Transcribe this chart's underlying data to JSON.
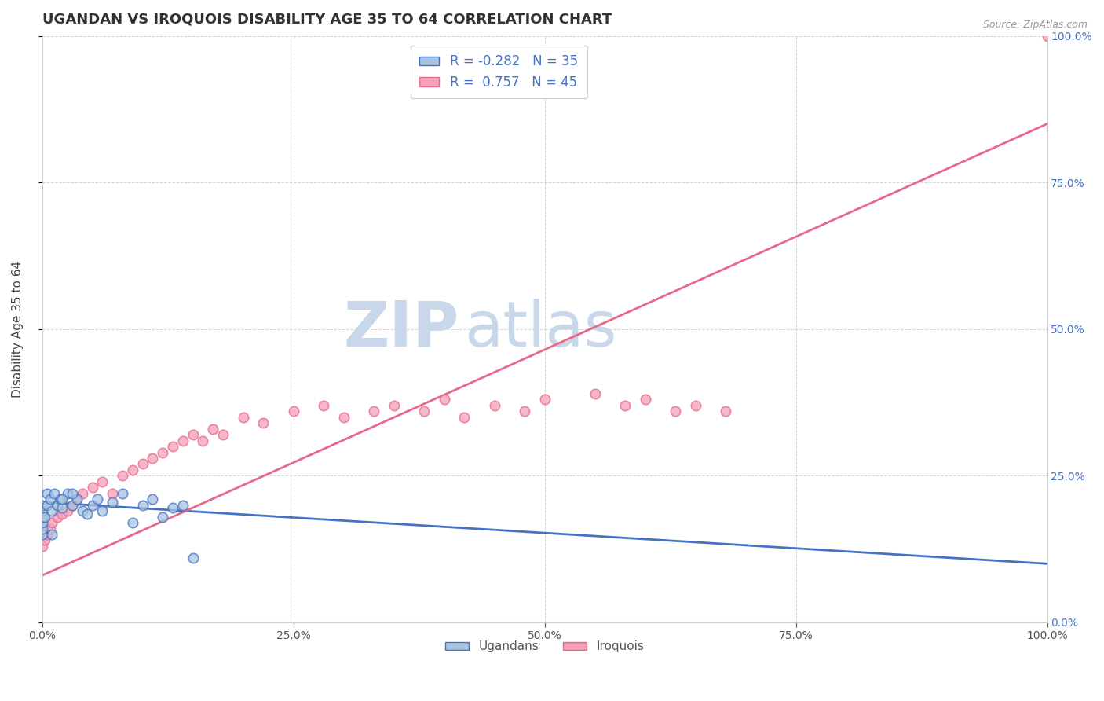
{
  "title": "UGANDAN VS IROQUOIS DISABILITY AGE 35 TO 64 CORRELATION CHART",
  "source_text": "Source: ZipAtlas.com",
  "ylabel": "Disability Age 35 to 64",
  "legend_ugandan": "Ugandans",
  "legend_iroquois": "Iroquois",
  "r_ugandan": -0.282,
  "n_ugandan": 35,
  "r_iroquois": 0.757,
  "n_iroquois": 45,
  "color_ugandan": "#a8c4e0",
  "color_iroquois": "#f4a0b8",
  "color_ugandan_line": "#4472c4",
  "color_iroquois_line": "#e8688a",
  "background_color": "#ffffff",
  "grid_color": "#d0d0d0",
  "watermark": "ZIPatlas",
  "watermark_color": "#c8d8ea",
  "ugandan_x": [
    0.0,
    0.0,
    0.0,
    0.0,
    0.0,
    0.0,
    0.3,
    0.5,
    0.5,
    0.8,
    1.0,
    1.2,
    1.5,
    1.8,
    2.0,
    2.5,
    3.0,
    3.5,
    4.0,
    4.5,
    5.0,
    5.5,
    6.0,
    7.0,
    8.0,
    9.0,
    10.0,
    11.0,
    12.0,
    13.0,
    14.0,
    15.0,
    1.0,
    2.0,
    3.0
  ],
  "ugandan_y": [
    15.0,
    16.0,
    17.0,
    18.0,
    19.0,
    20.0,
    18.0,
    22.0,
    20.0,
    21.0,
    19.0,
    22.0,
    20.0,
    21.0,
    19.5,
    22.0,
    20.0,
    21.0,
    19.0,
    18.5,
    20.0,
    21.0,
    19.0,
    20.5,
    22.0,
    17.0,
    20.0,
    21.0,
    18.0,
    19.5,
    20.0,
    11.0,
    15.0,
    21.0,
    22.0
  ],
  "iroquois_x": [
    0.0,
    0.3,
    0.5,
    0.8,
    1.0,
    1.5,
    2.0,
    2.5,
    3.0,
    3.5,
    4.0,
    5.0,
    6.0,
    7.0,
    8.0,
    9.0,
    10.0,
    11.0,
    12.0,
    13.0,
    14.0,
    15.0,
    16.0,
    17.0,
    18.0,
    20.0,
    22.0,
    25.0,
    28.0,
    30.0,
    33.0,
    35.0,
    38.0,
    40.0,
    42.0,
    45.0,
    48.0,
    50.0,
    55.0,
    58.0,
    60.0,
    63.0,
    65.0,
    68.0,
    100.0
  ],
  "iroquois_y": [
    13.0,
    14.0,
    15.0,
    16.0,
    17.0,
    18.0,
    18.5,
    19.0,
    20.0,
    21.0,
    22.0,
    23.0,
    24.0,
    22.0,
    25.0,
    26.0,
    27.0,
    28.0,
    29.0,
    30.0,
    31.0,
    32.0,
    31.0,
    33.0,
    32.0,
    35.0,
    34.0,
    36.0,
    37.0,
    35.0,
    36.0,
    37.0,
    36.0,
    38.0,
    35.0,
    37.0,
    36.0,
    38.0,
    39.0,
    37.0,
    38.0,
    36.0,
    37.0,
    36.0,
    100.0
  ],
  "xlim": [
    0,
    100
  ],
  "ylim": [
    0,
    100
  ],
  "xticks": [
    0,
    25,
    50,
    75,
    100
  ],
  "xtick_labels": [
    "0.0%",
    "25.0%",
    "50.0%",
    "75.0%",
    "100.0%"
  ],
  "yticks": [
    0,
    25,
    50,
    75,
    100
  ],
  "ytick_labels_right": [
    "0.0%",
    "25.0%",
    "50.0%",
    "75.0%",
    "100.0%"
  ],
  "ugandan_trend_x0": 0,
  "ugandan_trend_x1": 100,
  "ugandan_trend_y0": 20.5,
  "ugandan_trend_y1": 10.0,
  "iroquois_trend_x0": 0,
  "iroquois_trend_x1": 100,
  "iroquois_trend_y0": 8.0,
  "iroquois_trend_y1": 85.0
}
